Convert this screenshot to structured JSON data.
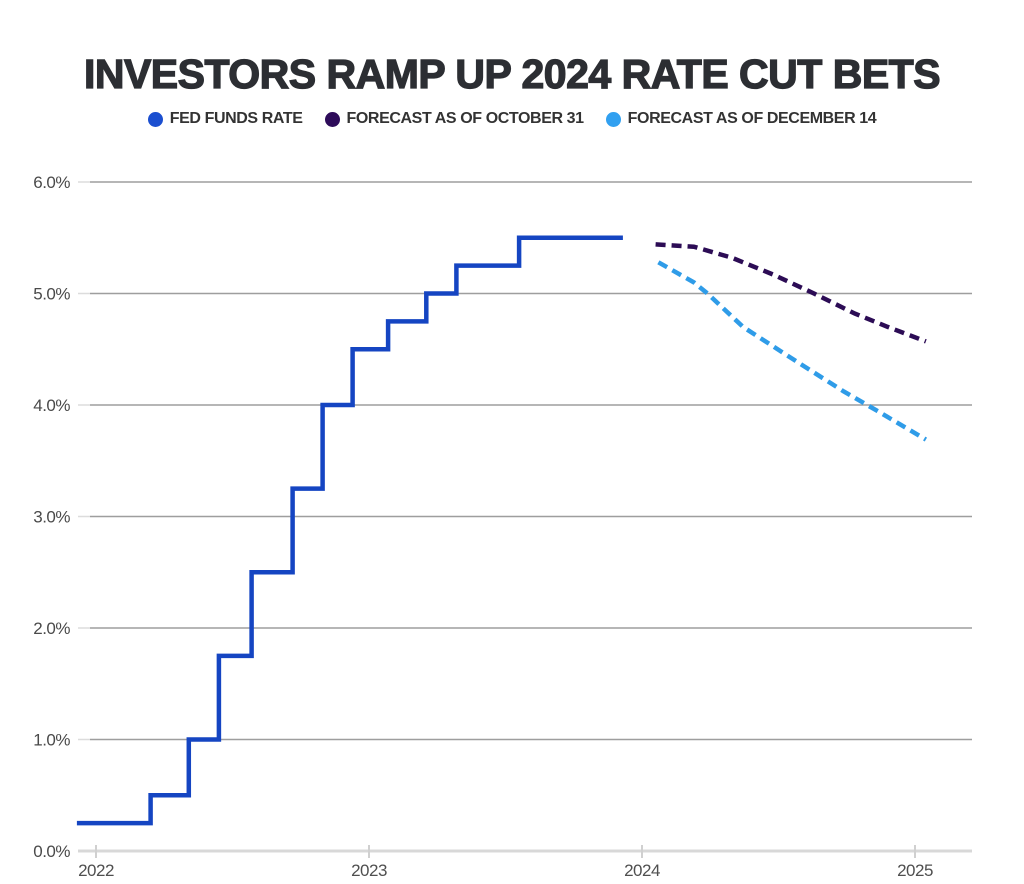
{
  "title": "INVESTORS RAMP UP 2024 RATE CUT BETS",
  "legend": [
    {
      "label": "FED FUNDS RATE",
      "color": "#1b4fd0"
    },
    {
      "label": "FORECAST AS OF OCTOBER 31",
      "color": "#2e0c5a"
    },
    {
      "label": "FORECAST AS OF DECEMBER 14",
      "color": "#31a0f0"
    }
  ],
  "colors": {
    "fed_funds_line": "#1545c2",
    "october_forecast_line": "#2c0c55",
    "december_forecast_line": "#2f9ce8",
    "gridline": "#9e9e9e",
    "zero_axis": "#d8d8d8",
    "tick": "#d0d0d0",
    "y_label_text": "#4a4a4a",
    "x_label_text": "#4f4f4f",
    "title_text": "#2c2e33"
  },
  "chart_data": {
    "type": "line",
    "title": "INVESTORS RAMP UP 2024 RATE CUT BETS",
    "xlabel": "",
    "ylabel": "",
    "units": "percent",
    "grid": "horizontal",
    "legend_position": "top",
    "ylim": [
      0,
      6
    ],
    "xlim": [
      2021.93,
      2025.25
    ],
    "y_ticks": [
      {
        "label": "0.0%",
        "value": 0
      },
      {
        "label": "1.0%",
        "value": 1
      },
      {
        "label": "2.0%",
        "value": 2
      },
      {
        "label": "3.0%",
        "value": 3
      },
      {
        "label": "4.0%",
        "value": 4
      },
      {
        "label": "5.0%",
        "value": 5
      },
      {
        "label": "6.0%",
        "value": 6
      }
    ],
    "x_ticks": [
      {
        "label": "2022",
        "value": 2022
      },
      {
        "label": "2023",
        "value": 2023
      },
      {
        "label": "2024",
        "value": 2024
      },
      {
        "label": "2025",
        "value": 2025
      }
    ],
    "series": [
      {
        "name": "FED FUNDS RATE",
        "style": "step",
        "dashed": false,
        "color": "#1545c2",
        "points": [
          [
            2021.93,
            0.25
          ],
          [
            2022.2,
            0.5
          ],
          [
            2022.34,
            1.0
          ],
          [
            2022.45,
            1.75
          ],
          [
            2022.57,
            2.5
          ],
          [
            2022.72,
            3.25
          ],
          [
            2022.83,
            4.0
          ],
          [
            2022.94,
            4.5
          ],
          [
            2023.07,
            4.75
          ],
          [
            2023.21,
            5.0
          ],
          [
            2023.32,
            5.25
          ],
          [
            2023.55,
            5.5
          ],
          [
            2023.93,
            5.5
          ]
        ]
      },
      {
        "name": "FORECAST AS OF OCTOBER 31",
        "style": "line",
        "dashed": true,
        "color": "#2c0c55",
        "points": [
          [
            2024.05,
            5.44
          ],
          [
            2024.19,
            5.42
          ],
          [
            2024.33,
            5.32
          ],
          [
            2024.48,
            5.17
          ],
          [
            2024.63,
            5.0
          ],
          [
            2024.78,
            4.82
          ],
          [
            2024.9,
            4.7
          ],
          [
            2025.04,
            4.57
          ]
        ]
      },
      {
        "name": "FORECAST AS OF DECEMBER 14",
        "style": "line",
        "dashed": true,
        "color": "#2f9ce8",
        "points": [
          [
            2024.06,
            5.28
          ],
          [
            2024.19,
            5.1
          ],
          [
            2024.24,
            5.0
          ],
          [
            2024.37,
            4.7
          ],
          [
            2024.56,
            4.4
          ],
          [
            2024.74,
            4.12
          ],
          [
            2024.86,
            3.95
          ],
          [
            2025.04,
            3.69
          ]
        ]
      }
    ]
  }
}
